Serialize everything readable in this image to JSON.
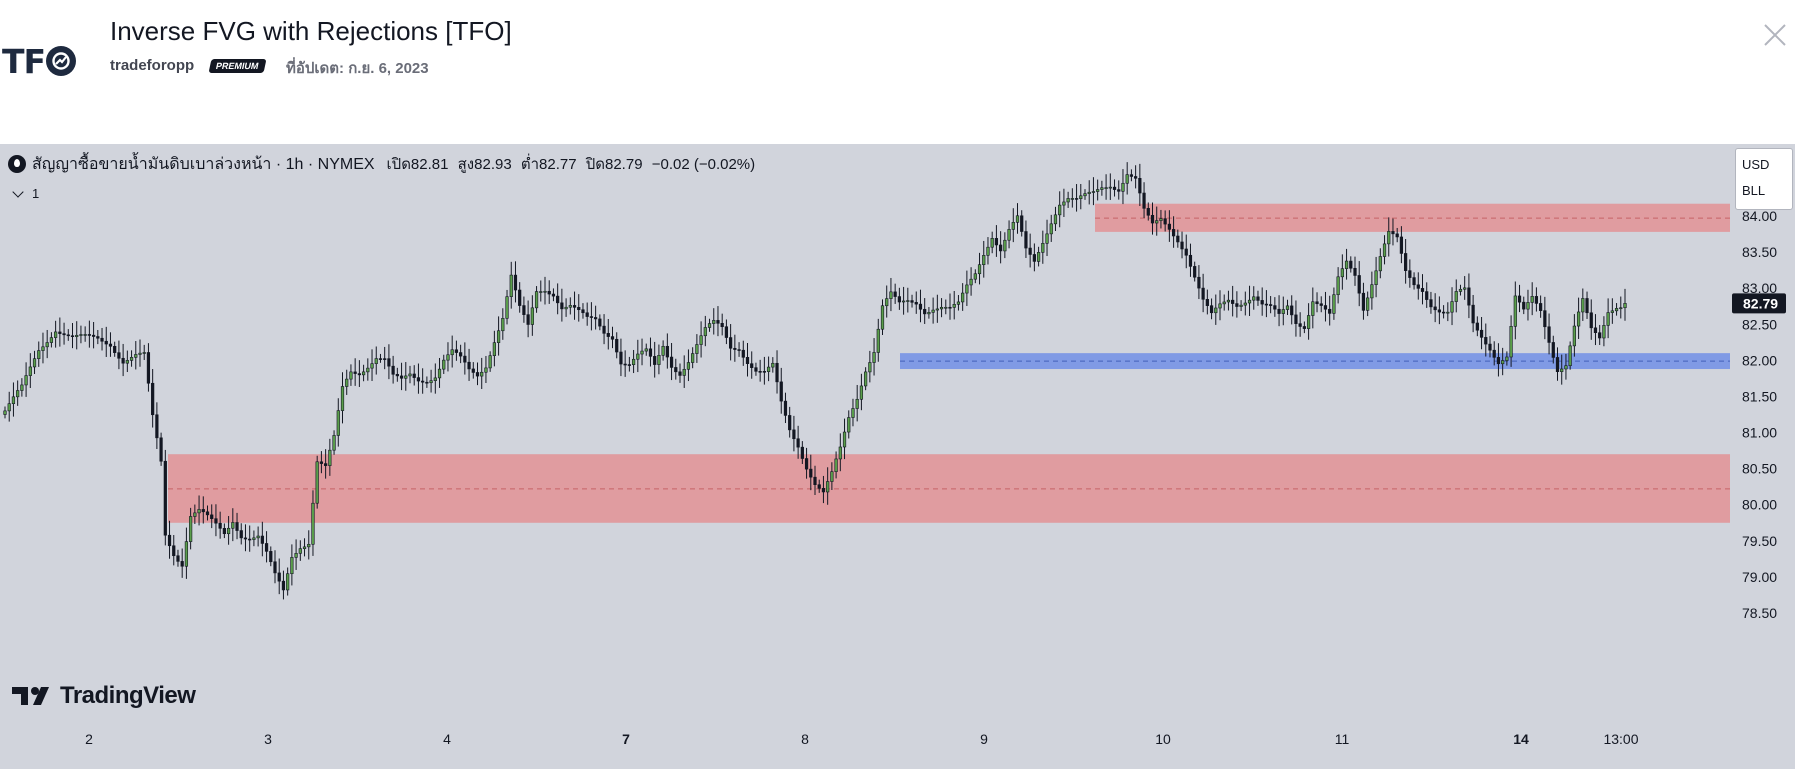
{
  "header": {
    "logo_text": "TF",
    "title": "Inverse FVG with Rejections [TFO]",
    "author": "tradeforopp",
    "badge": "PREMIUM",
    "updated": "ที่อัปเดต: ก.ย. 6, 2023",
    "close_icon": "close-icon"
  },
  "legend": {
    "symbol": "สัญญาซื้อขายน้ำมันดิบเบาล่วงหน้า · 1h · NYMEX",
    "open": "เปิด82.81",
    "high": "สูง82.93",
    "low": "ต่ำ82.77",
    "close": "ปิด82.79",
    "change": "−0.02 (−0.02%)",
    "collapse_label": "1"
  },
  "unit_box": {
    "currency": "USD",
    "unit": "BLL"
  },
  "watermark": "TradingView",
  "colors": {
    "background": "#d1d4dc",
    "candle_up": "#5a9e4b",
    "candle_down": "#131722",
    "fvg_bearish": "#e0999c",
    "fvg_bullish": "#7b97e5",
    "last_price_bg": "#131722"
  },
  "chart_data": {
    "type": "candlestick",
    "y_range": [
      78.3,
      84.4
    ],
    "y_ticks": [
      "84.00",
      "83.50",
      "83.00",
      "82.50",
      "82.00",
      "81.50",
      "81.00",
      "80.50",
      "80.00",
      "79.50",
      "79.00",
      "78.50"
    ],
    "x_ticks": [
      {
        "label": "2",
        "bold": false
      },
      {
        "label": "3",
        "bold": false
      },
      {
        "label": "4",
        "bold": false
      },
      {
        "label": "7",
        "bold": true
      },
      {
        "label": "8",
        "bold": false
      },
      {
        "label": "9",
        "bold": false
      },
      {
        "label": "10",
        "bold": false
      },
      {
        "label": "11",
        "bold": false
      },
      {
        "label": "14",
        "bold": true
      },
      {
        "label": "13:00",
        "bold": false
      }
    ],
    "last_price": "82.79",
    "zones": [
      {
        "kind": "bearish",
        "top": 84.17,
        "bottom": 83.78,
        "mid": 83.97
      },
      {
        "kind": "bullish",
        "top": 82.1,
        "bottom": 81.88,
        "mid": 81.99
      },
      {
        "kind": "bearish",
        "top": 80.7,
        "bottom": 79.75,
        "mid": 80.22
      }
    ],
    "anchors": [
      [
        0,
        81.3
      ],
      [
        4,
        81.6
      ],
      [
        8,
        82.15
      ],
      [
        12,
        82.45
      ],
      [
        16,
        82.3
      ],
      [
        19,
        82.3
      ],
      [
        22,
        82.3
      ],
      [
        25,
        82.25
      ],
      [
        28,
        82.0
      ],
      [
        31,
        82.05
      ],
      [
        33,
        82.05
      ],
      [
        35,
        81.2
      ],
      [
        37,
        80.6
      ],
      [
        38,
        79.6
      ],
      [
        40,
        79.35
      ],
      [
        42,
        79.2
      ],
      [
        44,
        79.85
      ],
      [
        46,
        79.9
      ],
      [
        48,
        79.8
      ],
      [
        50,
        79.7
      ],
      [
        52,
        79.6
      ],
      [
        54,
        79.8
      ],
      [
        56,
        79.6
      ],
      [
        58,
        79.55
      ],
      [
        60,
        79.55
      ],
      [
        62,
        79.3
      ],
      [
        64,
        79.0
      ],
      [
        66,
        78.8
      ],
      [
        68,
        79.3
      ],
      [
        70,
        79.45
      ],
      [
        72,
        79.5
      ],
      [
        74,
        80.6
      ],
      [
        76,
        80.5
      ],
      [
        78,
        80.9
      ],
      [
        80,
        81.6
      ],
      [
        82,
        81.85
      ],
      [
        84,
        81.85
      ],
      [
        86,
        81.95
      ],
      [
        88,
        82.05
      ],
      [
        90,
        82.0
      ],
      [
        92,
        81.75
      ],
      [
        94,
        81.7
      ],
      [
        96,
        81.8
      ],
      [
        98,
        81.75
      ],
      [
        100,
        81.75
      ],
      [
        102,
        81.8
      ],
      [
        104,
        82.0
      ],
      [
        106,
        82.1
      ],
      [
        108,
        82.0
      ],
      [
        110,
        81.85
      ],
      [
        112,
        81.8
      ],
      [
        114,
        81.95
      ],
      [
        116,
        82.3
      ],
      [
        118,
        82.6
      ],
      [
        120,
        83.15
      ],
      [
        122,
        82.7
      ],
      [
        124,
        82.45
      ],
      [
        126,
        82.95
      ],
      [
        128,
        83.0
      ],
      [
        130,
        82.95
      ],
      [
        132,
        82.75
      ],
      [
        134,
        82.75
      ],
      [
        136,
        82.65
      ],
      [
        138,
        82.55
      ],
      [
        140,
        82.55
      ],
      [
        142,
        82.4
      ],
      [
        144,
        82.35
      ],
      [
        146,
        82.0
      ],
      [
        148,
        81.95
      ],
      [
        150,
        82.05
      ],
      [
        152,
        82.1
      ],
      [
        154,
        81.9
      ],
      [
        156,
        82.2
      ],
      [
        158,
        81.95
      ],
      [
        160,
        81.85
      ],
      [
        162,
        82.0
      ],
      [
        164,
        82.2
      ],
      [
        166,
        82.4
      ],
      [
        168,
        82.5
      ],
      [
        170,
        82.45
      ],
      [
        172,
        82.2
      ],
      [
        174,
        82.2
      ],
      [
        176,
        82.0
      ],
      [
        178,
        81.85
      ],
      [
        180,
        81.8
      ],
      [
        182,
        81.9
      ],
      [
        184,
        81.4
      ],
      [
        186,
        81.05
      ],
      [
        188,
        80.85
      ],
      [
        190,
        80.55
      ],
      [
        192,
        80.3
      ],
      [
        194,
        80.15
      ],
      [
        196,
        80.4
      ],
      [
        198,
        80.75
      ],
      [
        200,
        81.2
      ],
      [
        202,
        81.5
      ],
      [
        204,
        81.9
      ],
      [
        206,
        82.15
      ],
      [
        208,
        82.75
      ],
      [
        210,
        82.9
      ],
      [
        212,
        82.75
      ],
      [
        214,
        82.8
      ],
      [
        216,
        82.8
      ],
      [
        218,
        82.7
      ],
      [
        220,
        82.75
      ],
      [
        222,
        82.75
      ],
      [
        224,
        82.7
      ],
      [
        226,
        82.75
      ],
      [
        228,
        83.0
      ],
      [
        230,
        83.2
      ],
      [
        232,
        83.5
      ],
      [
        234,
        83.75
      ],
      [
        236,
        83.55
      ],
      [
        238,
        83.8
      ],
      [
        240,
        83.95
      ],
      [
        242,
        83.5
      ],
      [
        244,
        83.35
      ],
      [
        246,
        83.65
      ],
      [
        248,
        83.95
      ],
      [
        250,
        84.2
      ],
      [
        252,
        84.25
      ],
      [
        254,
        84.2
      ],
      [
        256,
        84.25
      ],
      [
        258,
        84.3
      ],
      [
        260,
        84.4
      ],
      [
        262,
        84.45
      ],
      [
        264,
        84.4
      ],
      [
        266,
        84.6
      ],
      [
        268,
        84.5
      ],
      [
        270,
        84.05
      ],
      [
        272,
        83.85
      ],
      [
        274,
        83.95
      ],
      [
        276,
        83.85
      ],
      [
        278,
        83.7
      ],
      [
        280,
        83.5
      ],
      [
        282,
        83.15
      ],
      [
        284,
        82.8
      ],
      [
        286,
        82.6
      ],
      [
        288,
        82.75
      ],
      [
        290,
        82.85
      ],
      [
        292,
        82.8
      ],
      [
        294,
        82.85
      ],
      [
        296,
        82.9
      ],
      [
        298,
        82.75
      ],
      [
        300,
        82.7
      ],
      [
        302,
        82.6
      ],
      [
        304,
        82.75
      ],
      [
        306,
        82.55
      ],
      [
        308,
        82.5
      ],
      [
        310,
        82.85
      ],
      [
        312,
        82.75
      ],
      [
        314,
        82.6
      ],
      [
        316,
        83.1
      ],
      [
        318,
        83.35
      ],
      [
        320,
        83.2
      ],
      [
        322,
        82.75
      ],
      [
        324,
        83.1
      ],
      [
        326,
        83.45
      ],
      [
        328,
        83.75
      ],
      [
        330,
        83.65
      ],
      [
        332,
        83.2
      ],
      [
        334,
        83.05
      ],
      [
        336,
        83.0
      ],
      [
        338,
        82.8
      ],
      [
        340,
        82.7
      ],
      [
        342,
        82.65
      ],
      [
        344,
        82.9
      ],
      [
        346,
        82.95
      ],
      [
        348,
        82.5
      ],
      [
        350,
        82.35
      ],
      [
        352,
        82.2
      ],
      [
        354,
        82.0
      ],
      [
        356,
        82.05
      ],
      [
        358,
        82.85
      ],
      [
        360,
        82.65
      ],
      [
        362,
        82.85
      ],
      [
        364,
        82.7
      ],
      [
        366,
        82.3
      ],
      [
        368,
        81.9
      ],
      [
        370,
        81.95
      ],
      [
        372,
        82.45
      ],
      [
        374,
        82.8
      ],
      [
        376,
        82.4
      ],
      [
        378,
        82.3
      ],
      [
        380,
        82.7
      ],
      [
        382,
        82.78
      ],
      [
        384,
        82.79
      ]
    ]
  }
}
